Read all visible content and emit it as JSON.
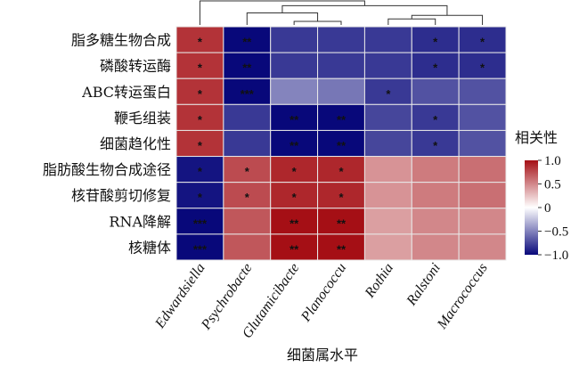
{
  "chart_data": {
    "type": "heatmap",
    "title": "",
    "xlabel": "细菌属水平",
    "ylabel": "",
    "rows": [
      "脂多糖生物合成",
      "磷酸转运酶",
      "ABC转运蛋白",
      "鞭毛组装",
      "细菌趋化性",
      "脂肪酸生物合成途径",
      "核苷酸剪切修复",
      "RNA降解",
      "核糖体"
    ],
    "columns": [
      "Edwardsiella",
      "Psychrobacte",
      "Glutamicibacte",
      "Planococcu",
      "Rothia",
      "Ralstoni",
      "Macrococcus"
    ],
    "values": [
      [
        0.85,
        -1.0,
        -0.8,
        -0.8,
        -0.8,
        -0.85,
        -0.85
      ],
      [
        0.85,
        -1.0,
        -0.8,
        -0.8,
        -0.8,
        -0.85,
        -0.85
      ],
      [
        0.85,
        -1.0,
        -0.5,
        -0.55,
        -0.8,
        -0.7,
        -0.7
      ],
      [
        0.85,
        -0.8,
        -1.0,
        -1.0,
        -0.75,
        -0.8,
        -0.7
      ],
      [
        0.85,
        -0.8,
        -1.0,
        -1.0,
        -0.75,
        -0.8,
        -0.7
      ],
      [
        -0.95,
        0.75,
        0.9,
        0.9,
        0.45,
        0.55,
        0.6
      ],
      [
        -0.95,
        0.75,
        0.9,
        0.9,
        0.45,
        0.55,
        0.6
      ],
      [
        -1.0,
        0.7,
        1.0,
        1.0,
        0.4,
        0.5,
        0.5
      ],
      [
        -1.0,
        0.7,
        1.0,
        1.0,
        0.4,
        0.5,
        0.5
      ]
    ],
    "significance": [
      [
        "*",
        "**",
        "",
        "",
        "",
        "*",
        "*"
      ],
      [
        "*",
        "**",
        "",
        "",
        "",
        "*",
        "*"
      ],
      [
        "*",
        "***",
        "",
        "",
        "*",
        "",
        ""
      ],
      [
        "*",
        "",
        "**",
        "**",
        "",
        "*",
        ""
      ],
      [
        "*",
        "",
        "**",
        "**",
        "",
        "*",
        ""
      ],
      [
        "*",
        "*",
        "*",
        "*",
        "",
        "",
        ""
      ],
      [
        "*",
        "*",
        "*",
        "*",
        "",
        "",
        ""
      ],
      [
        "***",
        "",
        "**",
        "**",
        "",
        "",
        ""
      ],
      [
        "***",
        "",
        "**",
        "**",
        "",
        "",
        ""
      ]
    ],
    "legend": {
      "title": "相关性",
      "ticks": [
        1.0,
        0.5,
        0,
        -0.5,
        -1.0
      ],
      "tick_labels": [
        "1.0",
        "0.5",
        "0",
        "−0.5",
        "−1.0"
      ],
      "range": [
        -1.0,
        1.0
      ],
      "placement": "right"
    },
    "colors": {
      "high": "#a50f15",
      "mid": "#ffffff",
      "low": "#08087a"
    },
    "column_dendrogram": {
      "merges": [
        [
          2,
          3
        ],
        [
          4,
          5
        ],
        [
          8,
          6
        ],
        [
          1,
          7
        ],
        [
          9,
          10
        ],
        [
          0,
          11
        ]
      ],
      "heights": [
        0.15,
        0.25,
        0.4,
        0.5,
        0.8,
        1.0
      ]
    }
  }
}
